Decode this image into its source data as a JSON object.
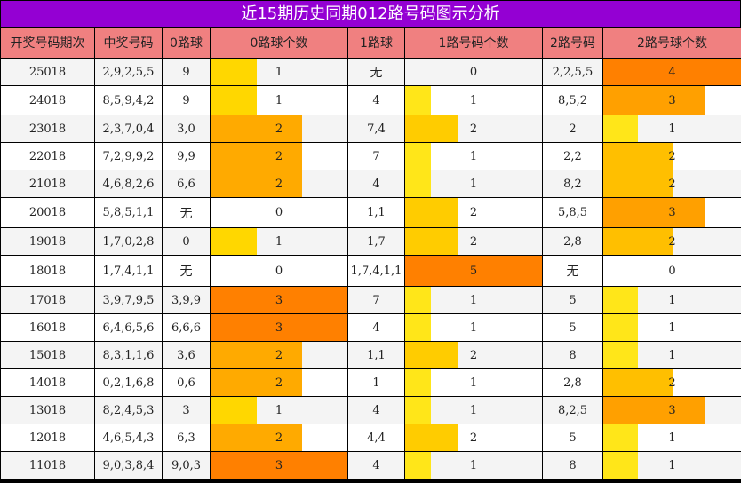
{
  "title": "近15期历史同期012路号码图示分析",
  "headers": [
    "开奖号码期次",
    "中奖号码",
    "0路球",
    "0路球个数",
    "1路球",
    "1路号码个数",
    "2路号码",
    "2路号球个数"
  ],
  "colors": {
    "title_bg": "#9400d3",
    "header_bg": "#f08080",
    "count_1": "#ffd700",
    "count_1_alt": "#ffe619",
    "count_2": "#ffaa00",
    "count_2_alt": "#ffc800",
    "count_3": "#ff8000",
    "count_3_alt": "#ffa000",
    "count_4": "#ff8000",
    "count_5": "#ff8000"
  },
  "rows": [
    {
      "period": "25018",
      "numbers": "2,9,2,5,5",
      "r0": "9",
      "c0": 1,
      "r1": "无",
      "c1": 0,
      "r2": "2,2,5,5",
      "c2": 4
    },
    {
      "period": "24018",
      "numbers": "8,5,9,4,2",
      "r0": "9",
      "c0": 1,
      "r1": "4",
      "c1": 1,
      "r2": "8,5,2",
      "c2": 3
    },
    {
      "period": "23018",
      "numbers": "2,3,7,0,4",
      "r0": "3,0",
      "c0": 2,
      "r1": "7,4",
      "c1": 2,
      "r2": "2",
      "c2": 1
    },
    {
      "period": "22018",
      "numbers": "7,2,9,9,2",
      "r0": "9,9",
      "c0": 2,
      "r1": "7",
      "c1": 1,
      "r2": "2,2",
      "c2": 2
    },
    {
      "period": "21018",
      "numbers": "4,6,8,2,6",
      "r0": "6,6",
      "c0": 2,
      "r1": "4",
      "c1": 1,
      "r2": "8,2",
      "c2": 2
    },
    {
      "period": "20018",
      "numbers": "5,8,5,1,1",
      "r0": "无",
      "c0": 0,
      "r1": "1,1",
      "c1": 2,
      "r2": "5,8,5",
      "c2": 3
    },
    {
      "period": "19018",
      "numbers": "1,7,0,2,8",
      "r0": "0",
      "c0": 1,
      "r1": "1,7",
      "c1": 2,
      "r2": "2,8",
      "c2": 2
    },
    {
      "period": "18018",
      "numbers": "1,7,4,1,1",
      "r0": "无",
      "c0": 0,
      "r1": "1,7,4,1,1",
      "c1": 5,
      "r2": "无",
      "c2": 0
    },
    {
      "period": "17018",
      "numbers": "3,9,7,9,5",
      "r0": "3,9,9",
      "c0": 3,
      "r1": "7",
      "c1": 1,
      "r2": "5",
      "c2": 1
    },
    {
      "period": "16018",
      "numbers": "6,4,6,5,6",
      "r0": "6,6,6",
      "c0": 3,
      "r1": "4",
      "c1": 1,
      "r2": "5",
      "c2": 1
    },
    {
      "period": "15018",
      "numbers": "8,3,1,1,6",
      "r0": "3,6",
      "c0": 2,
      "r1": "1,1",
      "c1": 2,
      "r2": "8",
      "c2": 1
    },
    {
      "period": "14018",
      "numbers": "0,2,1,6,8",
      "r0": "0,6",
      "c0": 2,
      "r1": "1",
      "c1": 1,
      "r2": "2,8",
      "c2": 2
    },
    {
      "period": "13018",
      "numbers": "8,2,4,5,3",
      "r0": "3",
      "c0": 1,
      "r1": "4",
      "c1": 1,
      "r2": "8,2,5",
      "c2": 3
    },
    {
      "period": "12018",
      "numbers": "4,6,5,4,3",
      "r0": "6,3",
      "c0": 2,
      "r1": "4,4",
      "c1": 2,
      "r2": "5",
      "c2": 1
    },
    {
      "period": "11018",
      "numbers": "9,0,3,8,4",
      "r0": "9,0,3",
      "c0": 3,
      "r1": "4",
      "c1": 1,
      "r2": "8",
      "c2": 1
    }
  ],
  "chart_data": {
    "type": "table",
    "title": "近15期历史同期012路号码图示分析",
    "columns": [
      "开奖号码期次",
      "中奖号码",
      "0路球",
      "0路球个数",
      "1路球",
      "1路号码个数",
      "2路号码",
      "2路号球个数"
    ],
    "categories": [
      "25018",
      "24018",
      "23018",
      "22018",
      "21018",
      "20018",
      "19018",
      "18018",
      "17018",
      "16018",
      "15018",
      "14018",
      "13018",
      "12018",
      "11018"
    ],
    "series": [
      {
        "name": "0路球个数",
        "values": [
          1,
          1,
          2,
          2,
          2,
          0,
          1,
          0,
          3,
          3,
          2,
          2,
          1,
          2,
          3
        ]
      },
      {
        "name": "1路号码个数",
        "values": [
          0,
          1,
          2,
          1,
          1,
          2,
          2,
          5,
          1,
          1,
          2,
          1,
          1,
          2,
          1
        ]
      },
      {
        "name": "2路号球个数",
        "values": [
          4,
          3,
          1,
          2,
          2,
          3,
          2,
          0,
          1,
          1,
          1,
          2,
          3,
          1,
          1
        ]
      }
    ],
    "bar_scale": {
      "0路球个数_max": 3,
      "1路号码个数_max": 5,
      "2路号球个数_max": 4
    }
  }
}
